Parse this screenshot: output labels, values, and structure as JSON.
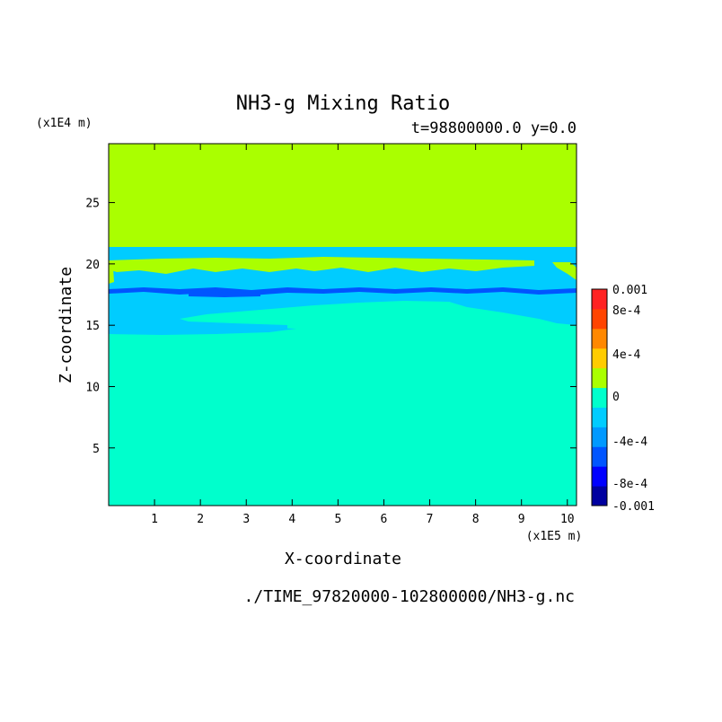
{
  "chart_data": {
    "type": "heatmap",
    "title": "NH3-g Mixing Ratio",
    "subtitle": "t=98800000.0 y=0.0",
    "xlabel": "X-coordinate",
    "ylabel": "Z-coordinate",
    "x_unit": "(x1E5 m)",
    "y_unit": "(x1E4 m)",
    "source": "./TIME_97820000-102800000/NH3-g.nc",
    "xlim": [
      0,
      10.2
    ],
    "ylim": [
      0.3,
      29.8
    ],
    "xticks": [
      "1",
      "2",
      "3",
      "4",
      "5",
      "6",
      "7",
      "8",
      "9",
      "10"
    ],
    "yticks": [
      "5",
      "10",
      "15",
      "20",
      "25"
    ],
    "colorbar": {
      "colors": [
        "#0000a0",
        "#0000ff",
        "#0055ff",
        "#0099ff",
        "#00ccff",
        "#00ffcc",
        "#aaff00",
        "#ffcc00",
        "#ff8800",
        "#ff4400",
        "#ff2222"
      ],
      "tick_labels": [
        "0.001",
        "8e-4",
        "4e-4",
        "0",
        "-4e-4",
        "-8e-4",
        "-0.001"
      ]
    },
    "regions": [
      {
        "level": "0 to 2e-4",
        "color": "#aaff00",
        "z_range": [
          21.4,
          29.8
        ]
      },
      {
        "level": "-4e-4 to -2e-4",
        "color": "#00ccff",
        "z_range": [
          14.3,
          21.4
        ]
      },
      {
        "level": "-8e-4 to -6e-4",
        "color": "#0055ff",
        "z_range": [
          17.5,
          18.1
        ]
      },
      {
        "level": "-2e-4 to 0",
        "color": "#00ffcc",
        "z_range": [
          0.3,
          17.0
        ]
      }
    ]
  }
}
